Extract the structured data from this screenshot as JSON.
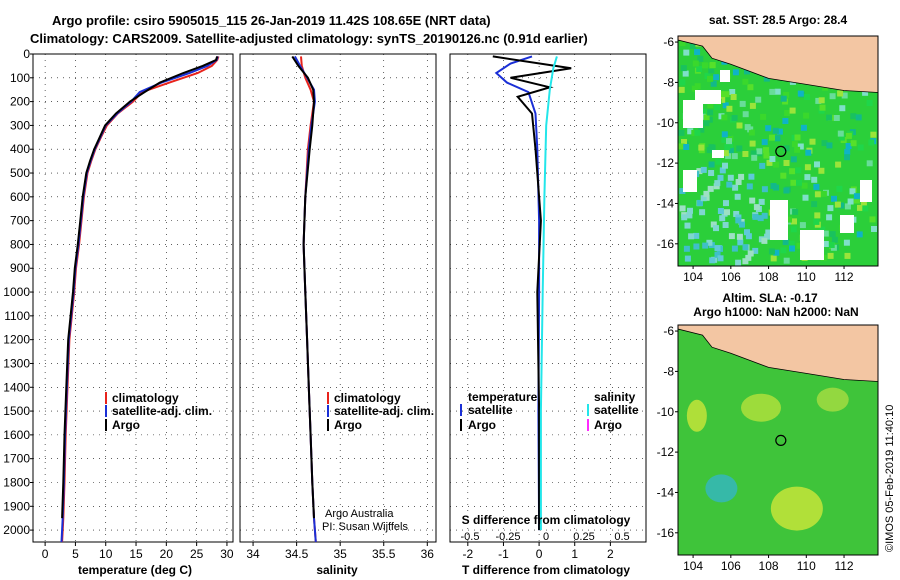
{
  "header": {
    "line1": "Argo profile: csiro 5905015_115 26-Jan-2019 11.42S 108.65E (NRT data)",
    "line2": "Climatology: CARS2009. Satellite-adjusted climatology: synTS_20190126.nc (0.91d earlier)"
  },
  "depth_axis": {
    "ticks": [
      0,
      100,
      200,
      300,
      400,
      500,
      600,
      700,
      800,
      900,
      1000,
      1100,
      1200,
      1300,
      1400,
      1500,
      1600,
      1700,
      1800,
      1900,
      2000
    ],
    "range": [
      0,
      2050
    ]
  },
  "panels": {
    "temperature": {
      "xlabel": "temperature (deg C)",
      "xticks": [
        "0",
        "5",
        "10",
        "15",
        "20",
        "25",
        "30"
      ],
      "xlim": [
        -2,
        31
      ],
      "legend": [
        "climatology",
        "satellite-adj. clim.",
        "Argo"
      ]
    },
    "salinity": {
      "xlabel": "salinity",
      "xticks": [
        "34",
        "34.5",
        "35",
        "35.5",
        "36"
      ],
      "xlim": [
        33.85,
        36.1
      ],
      "legend": [
        "climatology",
        "satellite-adj. clim.",
        "Argo"
      ],
      "credit1": "Argo Australia",
      "credit2": "PI: Susan Wijffels"
    },
    "difference": {
      "xlabel": "T difference from climatology",
      "xticks": [
        "-2",
        "-1",
        "0",
        "1",
        "2"
      ],
      "xlim": [
        -2.5,
        3
      ],
      "s_title": "S difference from climatology",
      "s_ticks": [
        "-0.5",
        "-0.25",
        "0",
        "0.25",
        "0.5"
      ],
      "legend_temp_title": "temperature",
      "legend_sal_title": "salinity",
      "legend_temp": [
        "satellite",
        "Argo"
      ],
      "legend_sal": [
        "satellite",
        "Argo"
      ]
    }
  },
  "maps": {
    "sst_title": "sat. SST: 28.5 Argo: 28.4",
    "sla_title1": "Altim. SLA: -0.17",
    "sla_title2": "Argo h1000: NaN h2000: NaN",
    "lon_ticks": [
      "104",
      "106",
      "108",
      "110",
      "112"
    ],
    "lat_ticks": [
      "-6",
      "-8",
      "-10",
      "-12",
      "-14",
      "-16"
    ],
    "lon_range": [
      103.2,
      113.8
    ],
    "lat_range": [
      -5.7,
      -17.1
    ],
    "float_position": {
      "lon": 108.65,
      "lat": -11.42
    }
  },
  "stamp": "©IMOS 05-Feb-2019 11:40:10",
  "colors": {
    "climatology": "#e8231c",
    "satellite": "#1a2fd6",
    "argo": "#000000",
    "satellite_salinity": "#22e6ea",
    "argo_salinity": "#ff2bff",
    "land": "#f3c6a3",
    "sea_map": "#3fc43a"
  },
  "chart_data": [
    {
      "type": "line",
      "title": "",
      "xlabel": "temperature (deg C)",
      "ylabel": "",
      "ylim": [
        0,
        2050
      ],
      "series": [
        {
          "name": "climatology",
          "x": [
            28.6,
            28.4,
            27.5,
            25.2,
            20.5,
            16.0,
            14.5,
            12.0,
            10.2,
            9.2,
            8.3,
            7.6,
            7.0,
            6.4,
            6.0,
            5.6,
            5.1,
            4.8,
            4.4,
            4.0,
            3.7,
            3.4,
            3.2,
            3.0,
            2.8
          ],
          "y": [
            10,
            25,
            50,
            80,
            120,
            160,
            200,
            250,
            300,
            350,
            400,
            450,
            500,
            600,
            700,
            800,
            900,
            1000,
            1100,
            1200,
            1400,
            1600,
            1800,
            1950,
            2050
          ]
        },
        {
          "name": "satellite-adj. clim.",
          "x": [
            28.5,
            28.3,
            26.8,
            23.8,
            19.2,
            15.6,
            14.2,
            11.9,
            10.0,
            9.1,
            8.2,
            7.5,
            6.9,
            6.3,
            5.9,
            5.5,
            5.0,
            4.7,
            4.3,
            3.9,
            3.6,
            3.3,
            3.1,
            2.9,
            2.7
          ],
          "y": [
            10,
            25,
            50,
            80,
            120,
            160,
            200,
            250,
            300,
            350,
            400,
            450,
            500,
            600,
            700,
            800,
            900,
            1000,
            1100,
            1200,
            1400,
            1600,
            1800,
            1950,
            2050
          ]
        },
        {
          "name": "Argo",
          "x": [
            28.4,
            28.2,
            26.0,
            22.8,
            18.9,
            16.4,
            14.0,
            11.7,
            9.9,
            9.0,
            8.1,
            7.4,
            6.8,
            6.2,
            5.8,
            5.4,
            4.9,
            4.6,
            4.2,
            3.8,
            3.5,
            3.2,
            3.0,
            2.8
          ],
          "y": [
            10,
            25,
            50,
            80,
            120,
            160,
            200,
            250,
            300,
            350,
            400,
            450,
            500,
            600,
            700,
            800,
            900,
            1000,
            1100,
            1200,
            1400,
            1600,
            1800,
            1950
          ]
        }
      ]
    },
    {
      "type": "line",
      "title": "",
      "xlabel": "salinity",
      "ylabel": "",
      "ylim": [
        0,
        2050
      ],
      "series": [
        {
          "name": "climatology",
          "x": [
            34.55,
            34.56,
            34.6,
            34.66,
            34.7,
            34.66,
            34.63,
            34.6,
            34.58,
            34.6,
            34.62,
            34.64,
            34.66,
            34.68,
            34.7,
            34.72
          ],
          "y": [
            10,
            50,
            100,
            150,
            200,
            300,
            400,
            600,
            800,
            1000,
            1200,
            1400,
            1600,
            1800,
            1950,
            2050
          ]
        },
        {
          "name": "satellite-adj. clim.",
          "x": [
            34.48,
            34.54,
            34.62,
            34.7,
            34.71,
            34.67,
            34.64,
            34.6,
            34.58,
            34.6,
            34.62,
            34.64,
            34.66,
            34.68,
            34.7,
            34.72
          ],
          "y": [
            10,
            50,
            100,
            150,
            200,
            300,
            400,
            600,
            800,
            1000,
            1200,
            1400,
            1600,
            1800,
            1950,
            2050
          ]
        },
        {
          "name": "Argo",
          "x": [
            34.45,
            34.52,
            34.63,
            34.69,
            34.7,
            34.68,
            34.65,
            34.6,
            34.58,
            34.6,
            34.62,
            34.64,
            34.66,
            34.68,
            34.7
          ],
          "y": [
            10,
            50,
            100,
            150,
            200,
            300,
            400,
            600,
            800,
            1000,
            1200,
            1400,
            1600,
            1800,
            1950
          ]
        }
      ]
    },
    {
      "type": "line",
      "title": "",
      "xlabel": "T difference from climatology",
      "ylabel": "",
      "ylim": [
        0,
        2050
      ],
      "series": [
        {
          "name": "satellite",
          "x": [
            -0.2,
            -0.8,
            -1.2,
            -0.9,
            -0.3,
            -0.1,
            -0.05,
            0.0,
            0.0,
            -0.02,
            0.0
          ],
          "y": [
            10,
            40,
            80,
            120,
            160,
            250,
            400,
            700,
            1000,
            1500,
            2000
          ]
        },
        {
          "name": "Argo",
          "x": [
            -1.3,
            0.9,
            -0.8,
            0.3,
            -0.6,
            -0.2,
            -0.1,
            0.05,
            -0.05,
            0.0,
            0.0
          ],
          "y": [
            10,
            60,
            100,
            140,
            180,
            250,
            400,
            700,
            1000,
            1500,
            2000
          ]
        }
      ]
    }
  ]
}
